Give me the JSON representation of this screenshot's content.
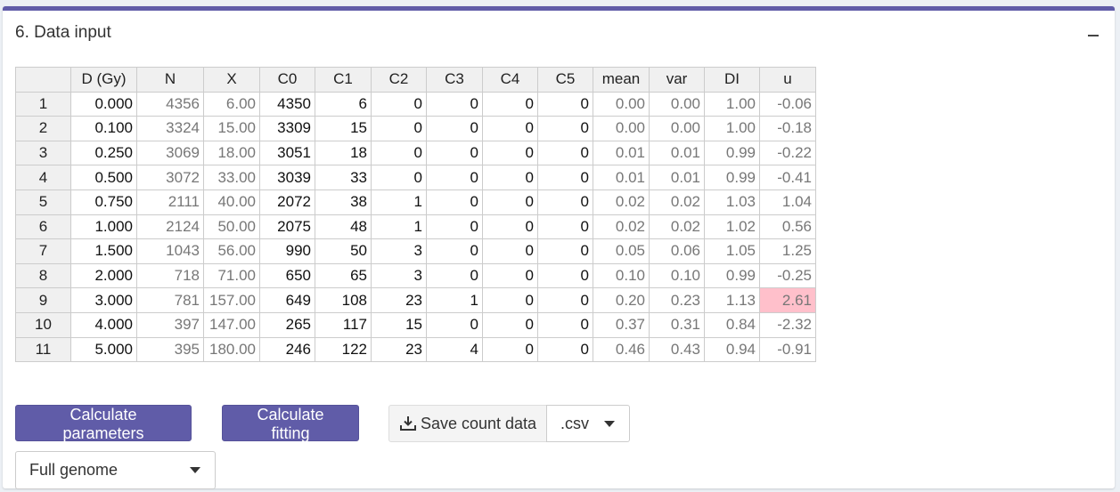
{
  "panel": {
    "title": "6. Data input",
    "collapse_icon": "minus-icon"
  },
  "table": {
    "columns": [
      "",
      "D (Gy)",
      "N",
      "X",
      "C0",
      "C1",
      "C2",
      "C3",
      "C4",
      "C5",
      "mean",
      "var",
      "DI",
      "u"
    ],
    "rows": [
      [
        "1",
        "0.000",
        "4356",
        "6.00",
        "4350",
        "6",
        "0",
        "0",
        "0",
        "0",
        "0.00",
        "0.00",
        "1.00",
        "-0.06"
      ],
      [
        "2",
        "0.100",
        "3324",
        "15.00",
        "3309",
        "15",
        "0",
        "0",
        "0",
        "0",
        "0.00",
        "0.00",
        "1.00",
        "-0.18"
      ],
      [
        "3",
        "0.250",
        "3069",
        "18.00",
        "3051",
        "18",
        "0",
        "0",
        "0",
        "0",
        "0.01",
        "0.01",
        "0.99",
        "-0.22"
      ],
      [
        "4",
        "0.500",
        "3072",
        "33.00",
        "3039",
        "33",
        "0",
        "0",
        "0",
        "0",
        "0.01",
        "0.01",
        "0.99",
        "-0.41"
      ],
      [
        "5",
        "0.750",
        "2111",
        "40.00",
        "2072",
        "38",
        "1",
        "0",
        "0",
        "0",
        "0.02",
        "0.02",
        "1.03",
        "1.04"
      ],
      [
        "6",
        "1.000",
        "2124",
        "50.00",
        "2075",
        "48",
        "1",
        "0",
        "0",
        "0",
        "0.02",
        "0.02",
        "1.02",
        "0.56"
      ],
      [
        "7",
        "1.500",
        "1043",
        "56.00",
        "990",
        "50",
        "3",
        "0",
        "0",
        "0",
        "0.05",
        "0.06",
        "1.05",
        "1.25"
      ],
      [
        "8",
        "2.000",
        "718",
        "71.00",
        "650",
        "65",
        "3",
        "0",
        "0",
        "0",
        "0.10",
        "0.10",
        "0.99",
        "-0.25"
      ],
      [
        "9",
        "3.000",
        "781",
        "157.00",
        "649",
        "108",
        "23",
        "1",
        "0",
        "0",
        "0.20",
        "0.23",
        "1.13",
        "2.61"
      ],
      [
        "10",
        "4.000",
        "397",
        "147.00",
        "265",
        "117",
        "15",
        "0",
        "0",
        "0",
        "0.37",
        "0.31",
        "0.84",
        "-2.32"
      ],
      [
        "11",
        "5.000",
        "395",
        "180.00",
        "246",
        "122",
        "23",
        "4",
        "0",
        "0",
        "0.46",
        "0.43",
        "0.94",
        "-0.91"
      ]
    ],
    "readonly_columns": [
      2,
      3,
      10,
      11,
      12,
      13
    ],
    "highlight_cells": [
      [
        8,
        13
      ]
    ],
    "highlight_color": "#ffc0cb"
  },
  "buttons": {
    "calculate_parameters": "Calculate parameters",
    "calculate_fitting": "Calculate fitting",
    "save_count_data": "Save count data"
  },
  "format_select": {
    "value": ".csv"
  },
  "genome_select": {
    "value": "Full genome"
  },
  "colors": {
    "accent": "#605ca8",
    "header_bg": "#f0f0f0",
    "highlight": "#ffc0cb"
  }
}
